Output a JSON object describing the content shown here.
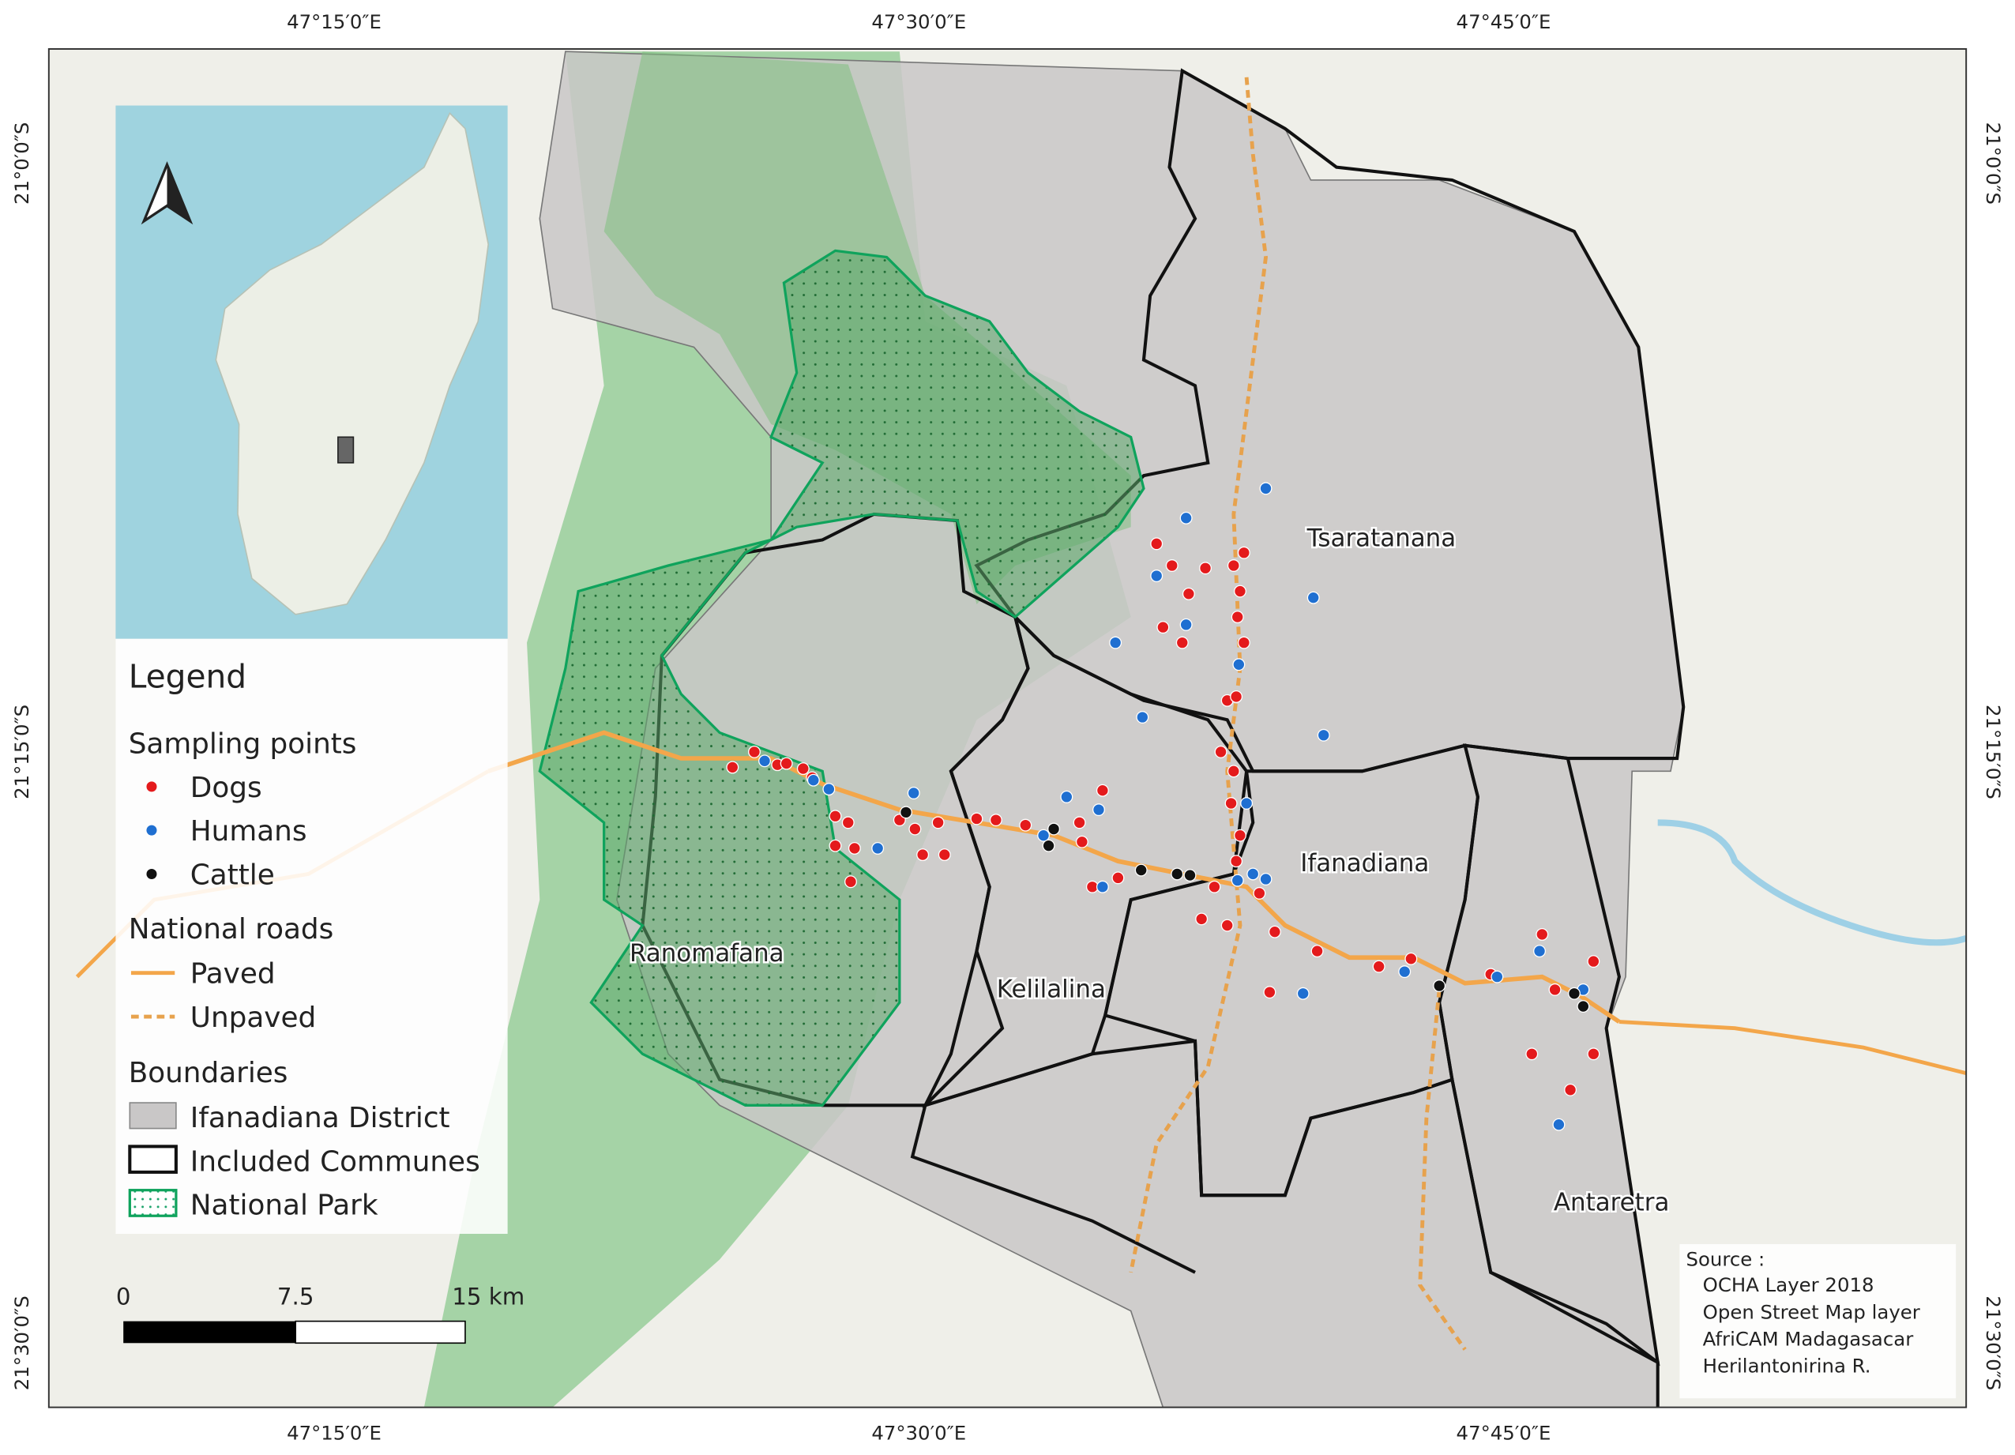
{
  "map": {
    "frame_labels": {
      "top": [
        "47°15′0″E",
        "47°30′0″E",
        "47°45′0″E"
      ],
      "bottom": [
        "47°15′0″E",
        "47°30′0″E",
        "47°45′0″E"
      ],
      "left": [
        "21°0′0″S",
        "21°15′0″S",
        "21°30′0″S"
      ],
      "right": [
        "21°0′0″S",
        "21°15′0″S",
        "21°30′0″S"
      ]
    },
    "places": [
      "Tsaratanana",
      "Ifanadiana",
      "Ranomafana",
      "Kelilalina",
      "Antaretra"
    ],
    "legend": {
      "title": "Legend",
      "sampling_title": "Sampling points",
      "sampling": [
        "Dogs",
        "Humans",
        "Cattle"
      ],
      "roads_title": "National roads",
      "roads": [
        "Paved",
        "Unpaved"
      ],
      "boundaries_title": "Boundaries",
      "boundaries": [
        "Ifanadiana District",
        "Included Communes",
        "National Park"
      ]
    },
    "scale_bar": [
      "0",
      "7.5",
      "15 km"
    ],
    "source": {
      "title": "Source :",
      "lines": [
        "OCHA Layer 2018",
        "Open Street Map layer",
        "AfriCAM Madagasacar",
        "Herilantonirina R."
      ]
    }
  }
}
